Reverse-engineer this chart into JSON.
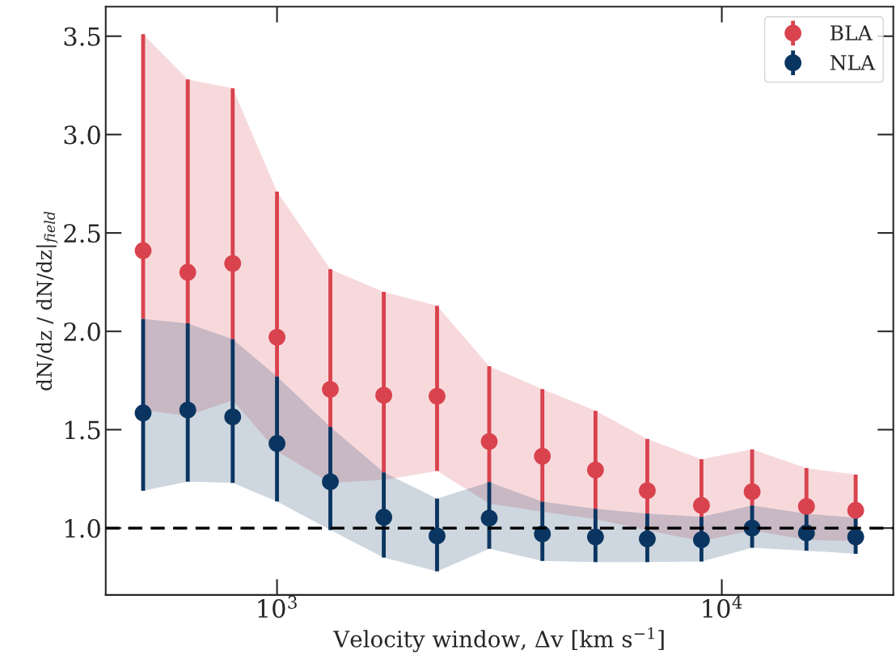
{
  "chart_data": {
    "type": "scatter",
    "xlabel": "Velocity window, Δv [km s$^{−1}$]",
    "ylabel": "dN/dz / dN/dz|$_{field}$",
    "x": [
      500,
      630,
      795,
      1000,
      1318,
      1738,
      2290,
      3000,
      3950,
      5200,
      6800,
      9000,
      11700,
      15500,
      20000
    ],
    "series": [
      {
        "name": "BLA",
        "color": "#d9434e",
        "values": [
          2.41,
          2.3,
          2.345,
          1.97,
          1.705,
          1.675,
          1.67,
          1.44,
          1.365,
          1.295,
          1.19,
          1.115,
          1.185,
          1.11,
          1.09
        ],
        "lower": [
          1.6,
          1.57,
          1.65,
          1.39,
          1.23,
          1.245,
          1.29,
          1.125,
          1.083,
          1.046,
          0.988,
          0.934,
          0.988,
          0.94,
          0.934
        ],
        "upper": [
          3.51,
          3.28,
          3.235,
          2.71,
          2.316,
          2.2,
          2.13,
          1.822,
          1.706,
          1.596,
          1.453,
          1.35,
          1.4,
          1.305,
          1.272
        ],
        "errors": [
          [
            2.063,
            3.51
          ],
          [
            2.04,
            3.28
          ],
          [
            1.96,
            3.235
          ],
          [
            1.77,
            2.71
          ],
          [
            1.514,
            2.316
          ],
          [
            1.283,
            2.2
          ],
          [
            1.29,
            2.13
          ],
          [
            1.234,
            1.822
          ],
          [
            1.134,
            1.706
          ],
          [
            1.098,
            1.596
          ],
          [
            1.074,
            1.453
          ],
          [
            1.057,
            1.35
          ],
          [
            1.115,
            1.4
          ],
          [
            1.073,
            1.305
          ],
          [
            1.053,
            1.272
          ]
        ]
      },
      {
        "name": "NLA",
        "color": "#0b3561",
        "values": [
          1.585,
          1.6,
          1.565,
          1.43,
          1.235,
          1.055,
          0.96,
          1.05,
          0.97,
          0.955,
          0.945,
          0.94,
          1.0,
          0.975,
          0.955
        ],
        "lower": [
          1.19,
          1.236,
          1.23,
          1.135,
          0.99,
          0.85,
          0.78,
          0.895,
          0.833,
          0.827,
          0.827,
          0.83,
          0.9,
          0.885,
          0.869
        ],
        "upper": [
          2.063,
          2.04,
          1.96,
          1.77,
          1.514,
          1.283,
          1.15,
          1.234,
          1.134,
          1.098,
          1.074,
          1.057,
          1.115,
          1.073,
          1.053
        ],
        "errors": [
          [
            1.19,
            2.063
          ],
          [
            1.236,
            2.04
          ],
          [
            1.23,
            1.96
          ],
          [
            1.135,
            1.77
          ],
          [
            0.99,
            1.514
          ],
          [
            0.85,
            1.283
          ],
          [
            0.78,
            1.15
          ],
          [
            0.895,
            1.234
          ],
          [
            0.833,
            1.134
          ],
          [
            0.827,
            1.098
          ],
          [
            0.827,
            1.074
          ],
          [
            0.83,
            1.057
          ],
          [
            0.9,
            1.115
          ],
          [
            0.885,
            1.073
          ],
          [
            0.869,
            1.053
          ]
        ]
      }
    ],
    "log": "x",
    "xlim": [
      412,
      24300
    ],
    "xticks": [
      {
        "value": 1000,
        "label": "10$^{3}$"
      },
      {
        "value": 10000,
        "label": "10$^{4}$"
      }
    ],
    "ylim": [
      0.66,
      3.65
    ],
    "yticks": [
      {
        "value": 1,
        "label": "1.0"
      },
      1.5,
      {
        "value": 2,
        "label": "2.0"
      },
      2.5,
      {
        "value": 3,
        "label": "3.0"
      },
      3.5
    ],
    "ref_lines": [
      {
        "axis": "y",
        "value": 1.0,
        "color": "#000000",
        "line_style": "dashed"
      }
    ],
    "marker": "circle",
    "grid": false,
    "legend": "top right"
  }
}
